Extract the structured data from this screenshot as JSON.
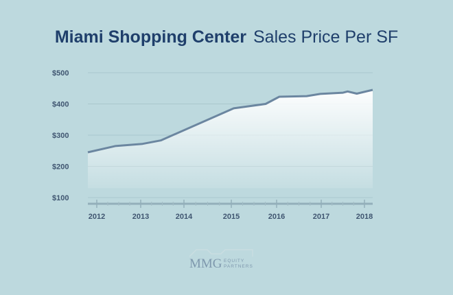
{
  "title_main": "Miami Shopping Center",
  "title_sub": "Sales Price Per SF",
  "colors": {
    "background": "#bdd9de",
    "title": "#1f3f6b",
    "line": "#6b86a0",
    "axis_text": "#3f5570",
    "grid": "#a9c7cd"
  },
  "chart_data": {
    "type": "area",
    "title": "Miami Shopping Center Sales Price Per SF",
    "xlabel": "",
    "ylabel": "",
    "x_ticks": [
      "2012",
      "2013",
      "2014",
      "2015",
      "2016",
      "2017",
      "2018"
    ],
    "y_ticks": [
      "$500",
      "$400",
      "$300",
      "$200",
      "$100"
    ],
    "y_tick_values": [
      500,
      400,
      300,
      200,
      100
    ],
    "xlim": [
      2011.8,
      2018.05
    ],
    "ylim": [
      100,
      500
    ],
    "grid": true,
    "series": [
      {
        "x": [
          2011.8,
          2012.4,
          2013.0,
          2013.4,
          2015.0,
          2015.7,
          2016.0,
          2016.6,
          2016.9,
          2017.4,
          2017.5,
          2017.7,
          2018.05
        ],
        "y": [
          245,
          265,
          272,
          283,
          386,
          400,
          423,
          425,
          432,
          436,
          440,
          433,
          445
        ]
      }
    ]
  },
  "logo": {
    "text": "MMG",
    "line1": "EQUITY",
    "line2": "PARTNERS"
  }
}
